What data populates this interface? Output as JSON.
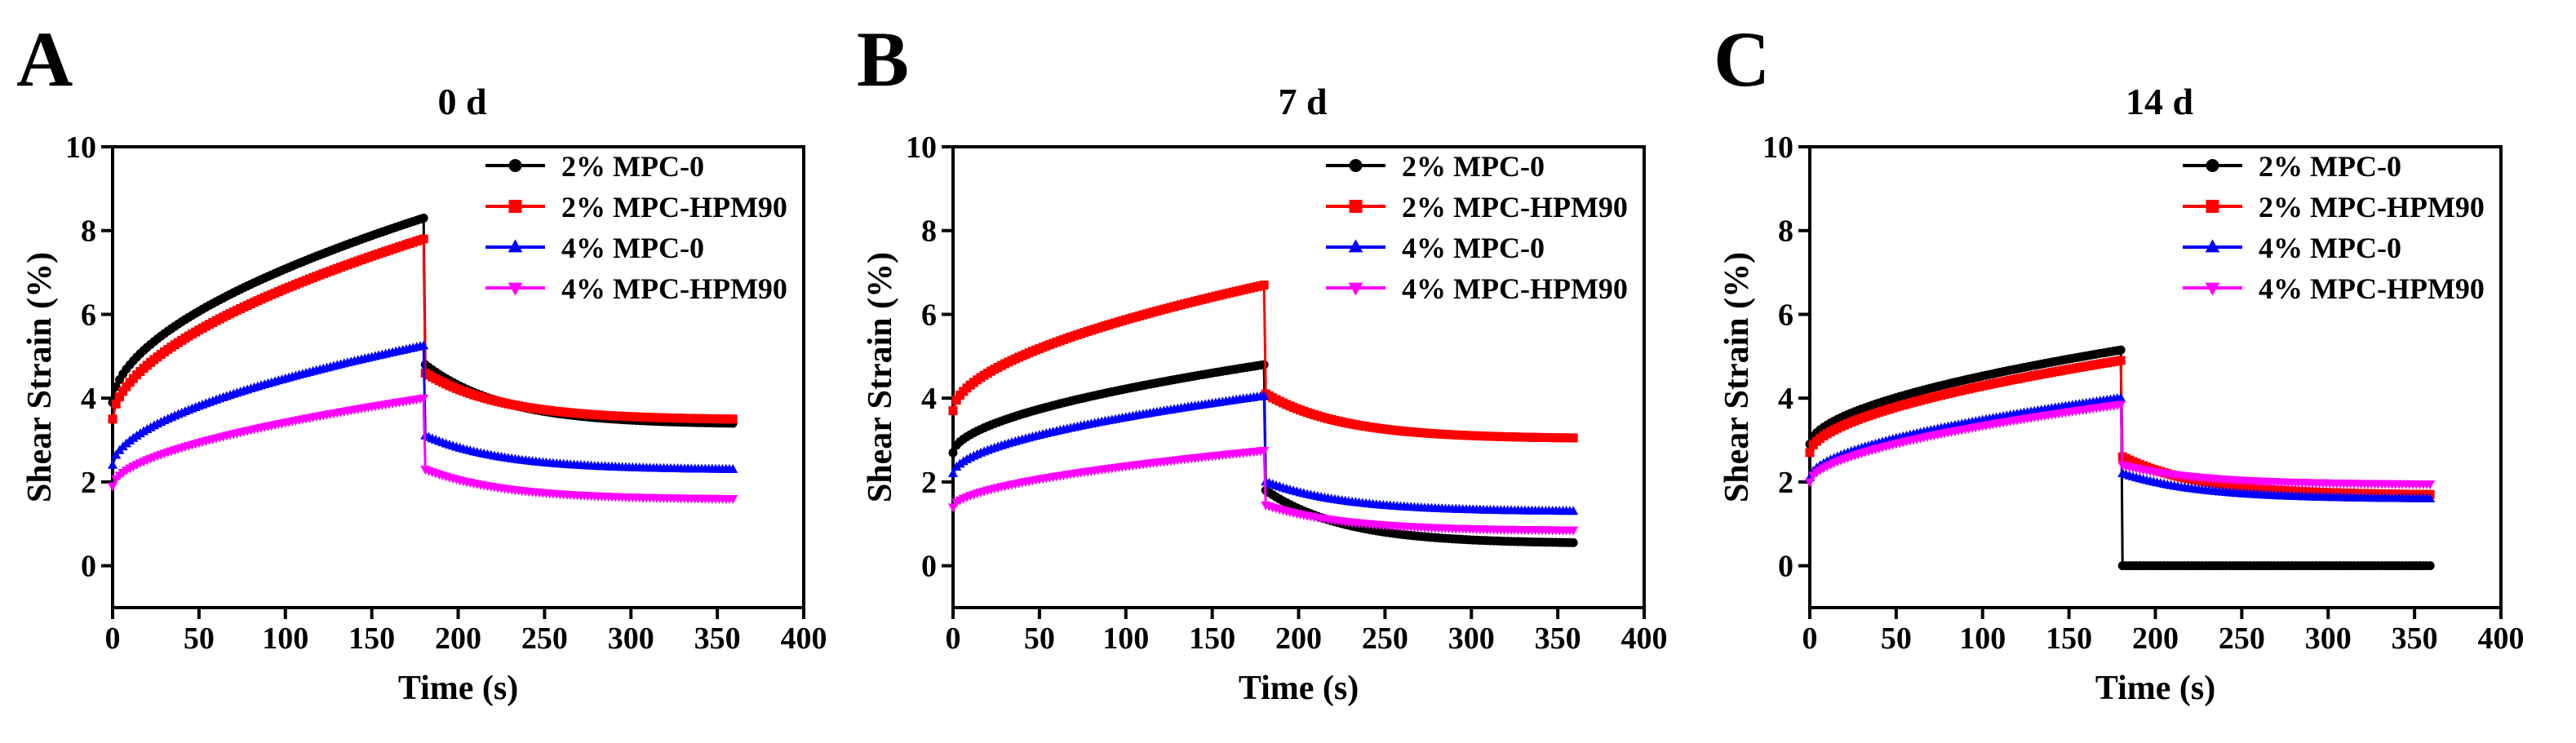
{
  "figure": {
    "panels": [
      "A",
      "B",
      "C"
    ]
  },
  "colors": {
    "2% MPC-0": "#000000",
    "2% MPC-HPM90": "#ff0000",
    "4% MPC-0": "#0000ff",
    "4% MPC-HPM90": "#ff00ff"
  },
  "chart_data": [
    {
      "panel": "A",
      "type": "line",
      "title": "0 d",
      "xlabel": "Time (s)",
      "ylabel": "Shear Strain  (%)",
      "xlim": [
        0,
        400
      ],
      "ylim": [
        -1,
        10
      ],
      "xticks": [
        0,
        50,
        100,
        150,
        200,
        250,
        300,
        350,
        400
      ],
      "yticks": [
        0,
        2,
        4,
        6,
        8,
        10
      ],
      "legend": [
        "2% MPC-0",
        "2% MPC-HPM90",
        "4% MPC-0",
        "4% MPC-HPM90"
      ],
      "series": [
        {
          "name": "2% MPC-0",
          "marker": "circle",
          "creep": {
            "start": 3.9,
            "end": 8.3
          },
          "recovery": {
            "start": 4.8,
            "end": 3.4
          }
        },
        {
          "name": "2% MPC-HPM90",
          "marker": "square",
          "creep": {
            "start": 3.5,
            "end": 7.8
          },
          "recovery": {
            "start": 4.6,
            "end": 3.5
          }
        },
        {
          "name": "4% MPC-0",
          "marker": "triangle-up",
          "creep": {
            "start": 2.4,
            "end": 5.25
          },
          "recovery": {
            "start": 3.1,
            "end": 2.3
          }
        },
        {
          "name": "4% MPC-HPM90",
          "marker": "triangle-down",
          "creep": {
            "start": 1.9,
            "end": 4.0
          },
          "recovery": {
            "start": 2.3,
            "end": 1.6
          }
        }
      ]
    },
    {
      "panel": "B",
      "type": "line",
      "title": "7 d",
      "xlabel": "Time (s)",
      "ylabel": "Shear Strain  (%)",
      "xlim": [
        0,
        400
      ],
      "ylim": [
        -1,
        10
      ],
      "xticks": [
        0,
        50,
        100,
        150,
        200,
        250,
        300,
        350,
        400
      ],
      "yticks": [
        0,
        2,
        4,
        6,
        8,
        10
      ],
      "legend": [
        "2% MPC-0",
        "2% MPC-HPM90",
        "4% MPC-0",
        "4% MPC-HPM90"
      ],
      "series": [
        {
          "name": "2% MPC-0",
          "marker": "circle",
          "creep": {
            "start": 2.7,
            "end": 4.8
          },
          "recovery": {
            "start": 1.8,
            "end": 0.55
          }
        },
        {
          "name": "2% MPC-HPM90",
          "marker": "square",
          "creep": {
            "start": 3.7,
            "end": 6.7
          },
          "recovery": {
            "start": 4.1,
            "end": 3.05
          }
        },
        {
          "name": "4% MPC-0",
          "marker": "triangle-up",
          "creep": {
            "start": 2.2,
            "end": 4.05
          },
          "recovery": {
            "start": 2.0,
            "end": 1.3
          }
        },
        {
          "name": "4% MPC-HPM90",
          "marker": "triangle-down",
          "creep": {
            "start": 1.4,
            "end": 2.75
          },
          "recovery": {
            "start": 1.45,
            "end": 0.85
          }
        }
      ]
    },
    {
      "panel": "C",
      "type": "line",
      "title": "14 d",
      "xlabel": "Time (s)",
      "ylabel": "Shear Strain  (%)",
      "xlim": [
        0,
        400
      ],
      "ylim": [
        -1,
        10
      ],
      "xticks": [
        0,
        50,
        100,
        150,
        200,
        250,
        300,
        350,
        400
      ],
      "yticks": [
        0,
        2,
        4,
        6,
        8,
        10
      ],
      "legend": [
        "2% MPC-0",
        "2% MPC-HPM90",
        "4% MPC-0",
        "4% MPC-HPM90"
      ],
      "series": [
        {
          "name": "2% MPC-0",
          "marker": "circle",
          "creep": {
            "start": 2.9,
            "end": 5.15
          },
          "recovery": {
            "start": 0.0,
            "end": 0.0
          }
        },
        {
          "name": "2% MPC-HPM90",
          "marker": "square",
          "creep": {
            "start": 2.7,
            "end": 4.9
          },
          "recovery": {
            "start": 2.6,
            "end": 1.7
          }
        },
        {
          "name": "4% MPC-0",
          "marker": "triangle-up",
          "creep": {
            "start": 2.1,
            "end": 4.0
          },
          "recovery": {
            "start": 2.2,
            "end": 1.6
          }
        },
        {
          "name": "4% MPC-HPM90",
          "marker": "triangle-down",
          "creep": {
            "start": 2.0,
            "end": 3.85
          },
          "recovery": {
            "start": 2.4,
            "end": 1.95
          }
        }
      ]
    }
  ]
}
